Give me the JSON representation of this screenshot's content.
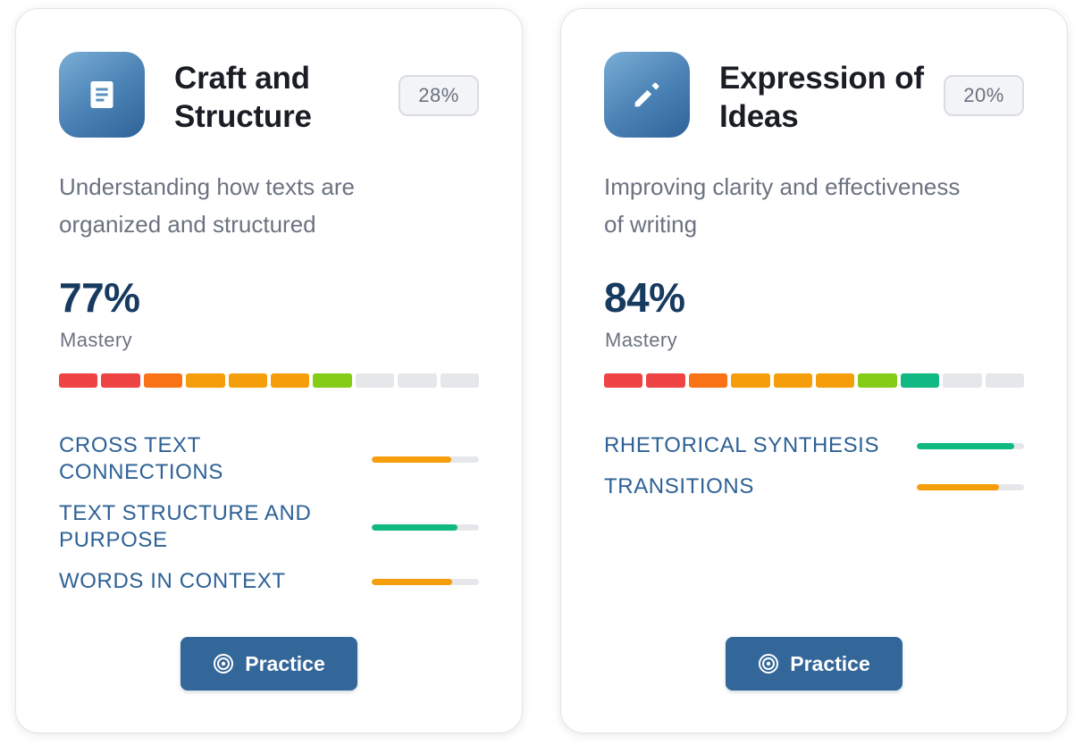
{
  "cards": [
    {
      "title": "Craft and Structure",
      "icon": "document-icon",
      "weight": "28%",
      "description": "Understanding how texts are organized and structured",
      "mastery_value": "77%",
      "mastery_label": "Mastery",
      "segment_colors": [
        "#ef4444",
        "#ef4444",
        "#f97316",
        "#f59e0b",
        "#f59e0b",
        "#f59e0b",
        "#84cc16",
        "#e5e7eb",
        "#e5e7eb",
        "#e5e7eb"
      ],
      "skills": [
        {
          "name": "CROSS TEXT CONNECTIONS",
          "progress": 0.74,
          "color": "#f59e0b"
        },
        {
          "name": "TEXT STRUCTURE AND PURPOSE",
          "progress": 0.8,
          "color": "#10b981"
        },
        {
          "name": "WORDS IN CONTEXT",
          "progress": 0.75,
          "color": "#f59e0b"
        }
      ],
      "practice_label": "Practice"
    },
    {
      "title": "Expression of Ideas",
      "icon": "pencil-icon",
      "weight": "20%",
      "description": "Improving clarity and effectiveness of writing",
      "mastery_value": "84%",
      "mastery_label": "Mastery",
      "segment_colors": [
        "#ef4444",
        "#ef4444",
        "#f97316",
        "#f59e0b",
        "#f59e0b",
        "#f59e0b",
        "#84cc16",
        "#10b981",
        "#e5e7eb",
        "#e5e7eb"
      ],
      "skills": [
        {
          "name": "RHETORICAL SYNTHESIS",
          "progress": 0.91,
          "color": "#10b981"
        },
        {
          "name": "TRANSITIONS",
          "progress": 0.77,
          "color": "#f59e0b"
        }
      ],
      "practice_label": "Practice"
    }
  ]
}
